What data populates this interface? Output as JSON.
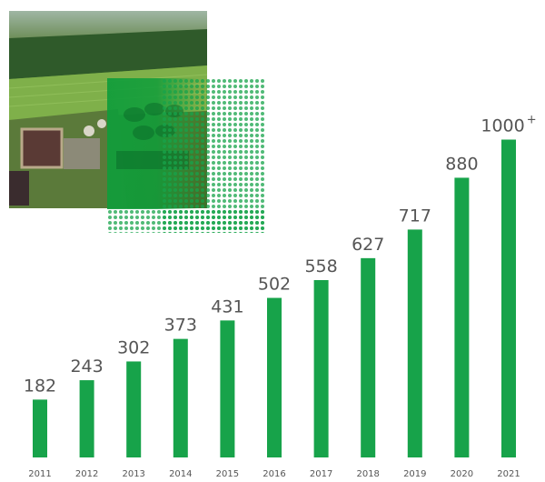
{
  "chart_data": {
    "type": "bar",
    "categories": [
      "2011",
      "2012",
      "2013",
      "2014",
      "2015",
      "2016",
      "2017",
      "2018",
      "2019",
      "2020",
      "2021"
    ],
    "values": [
      182,
      243,
      302,
      373,
      431,
      502,
      558,
      627,
      717,
      880,
      1000
    ],
    "value_labels": [
      "182",
      "243",
      "302",
      "373",
      "431",
      "502",
      "558",
      "627",
      "717",
      "880",
      "1000"
    ],
    "last_label_suffix": "+",
    "ylim": [
      0,
      1100
    ],
    "bar_color": "#17a34a",
    "grid": false,
    "title": "",
    "xlabel": "",
    "ylabel": ""
  },
  "image": {
    "name": "aerial-farm-biogas-plant-photo",
    "accent_overlay": "#0f9d3a"
  }
}
